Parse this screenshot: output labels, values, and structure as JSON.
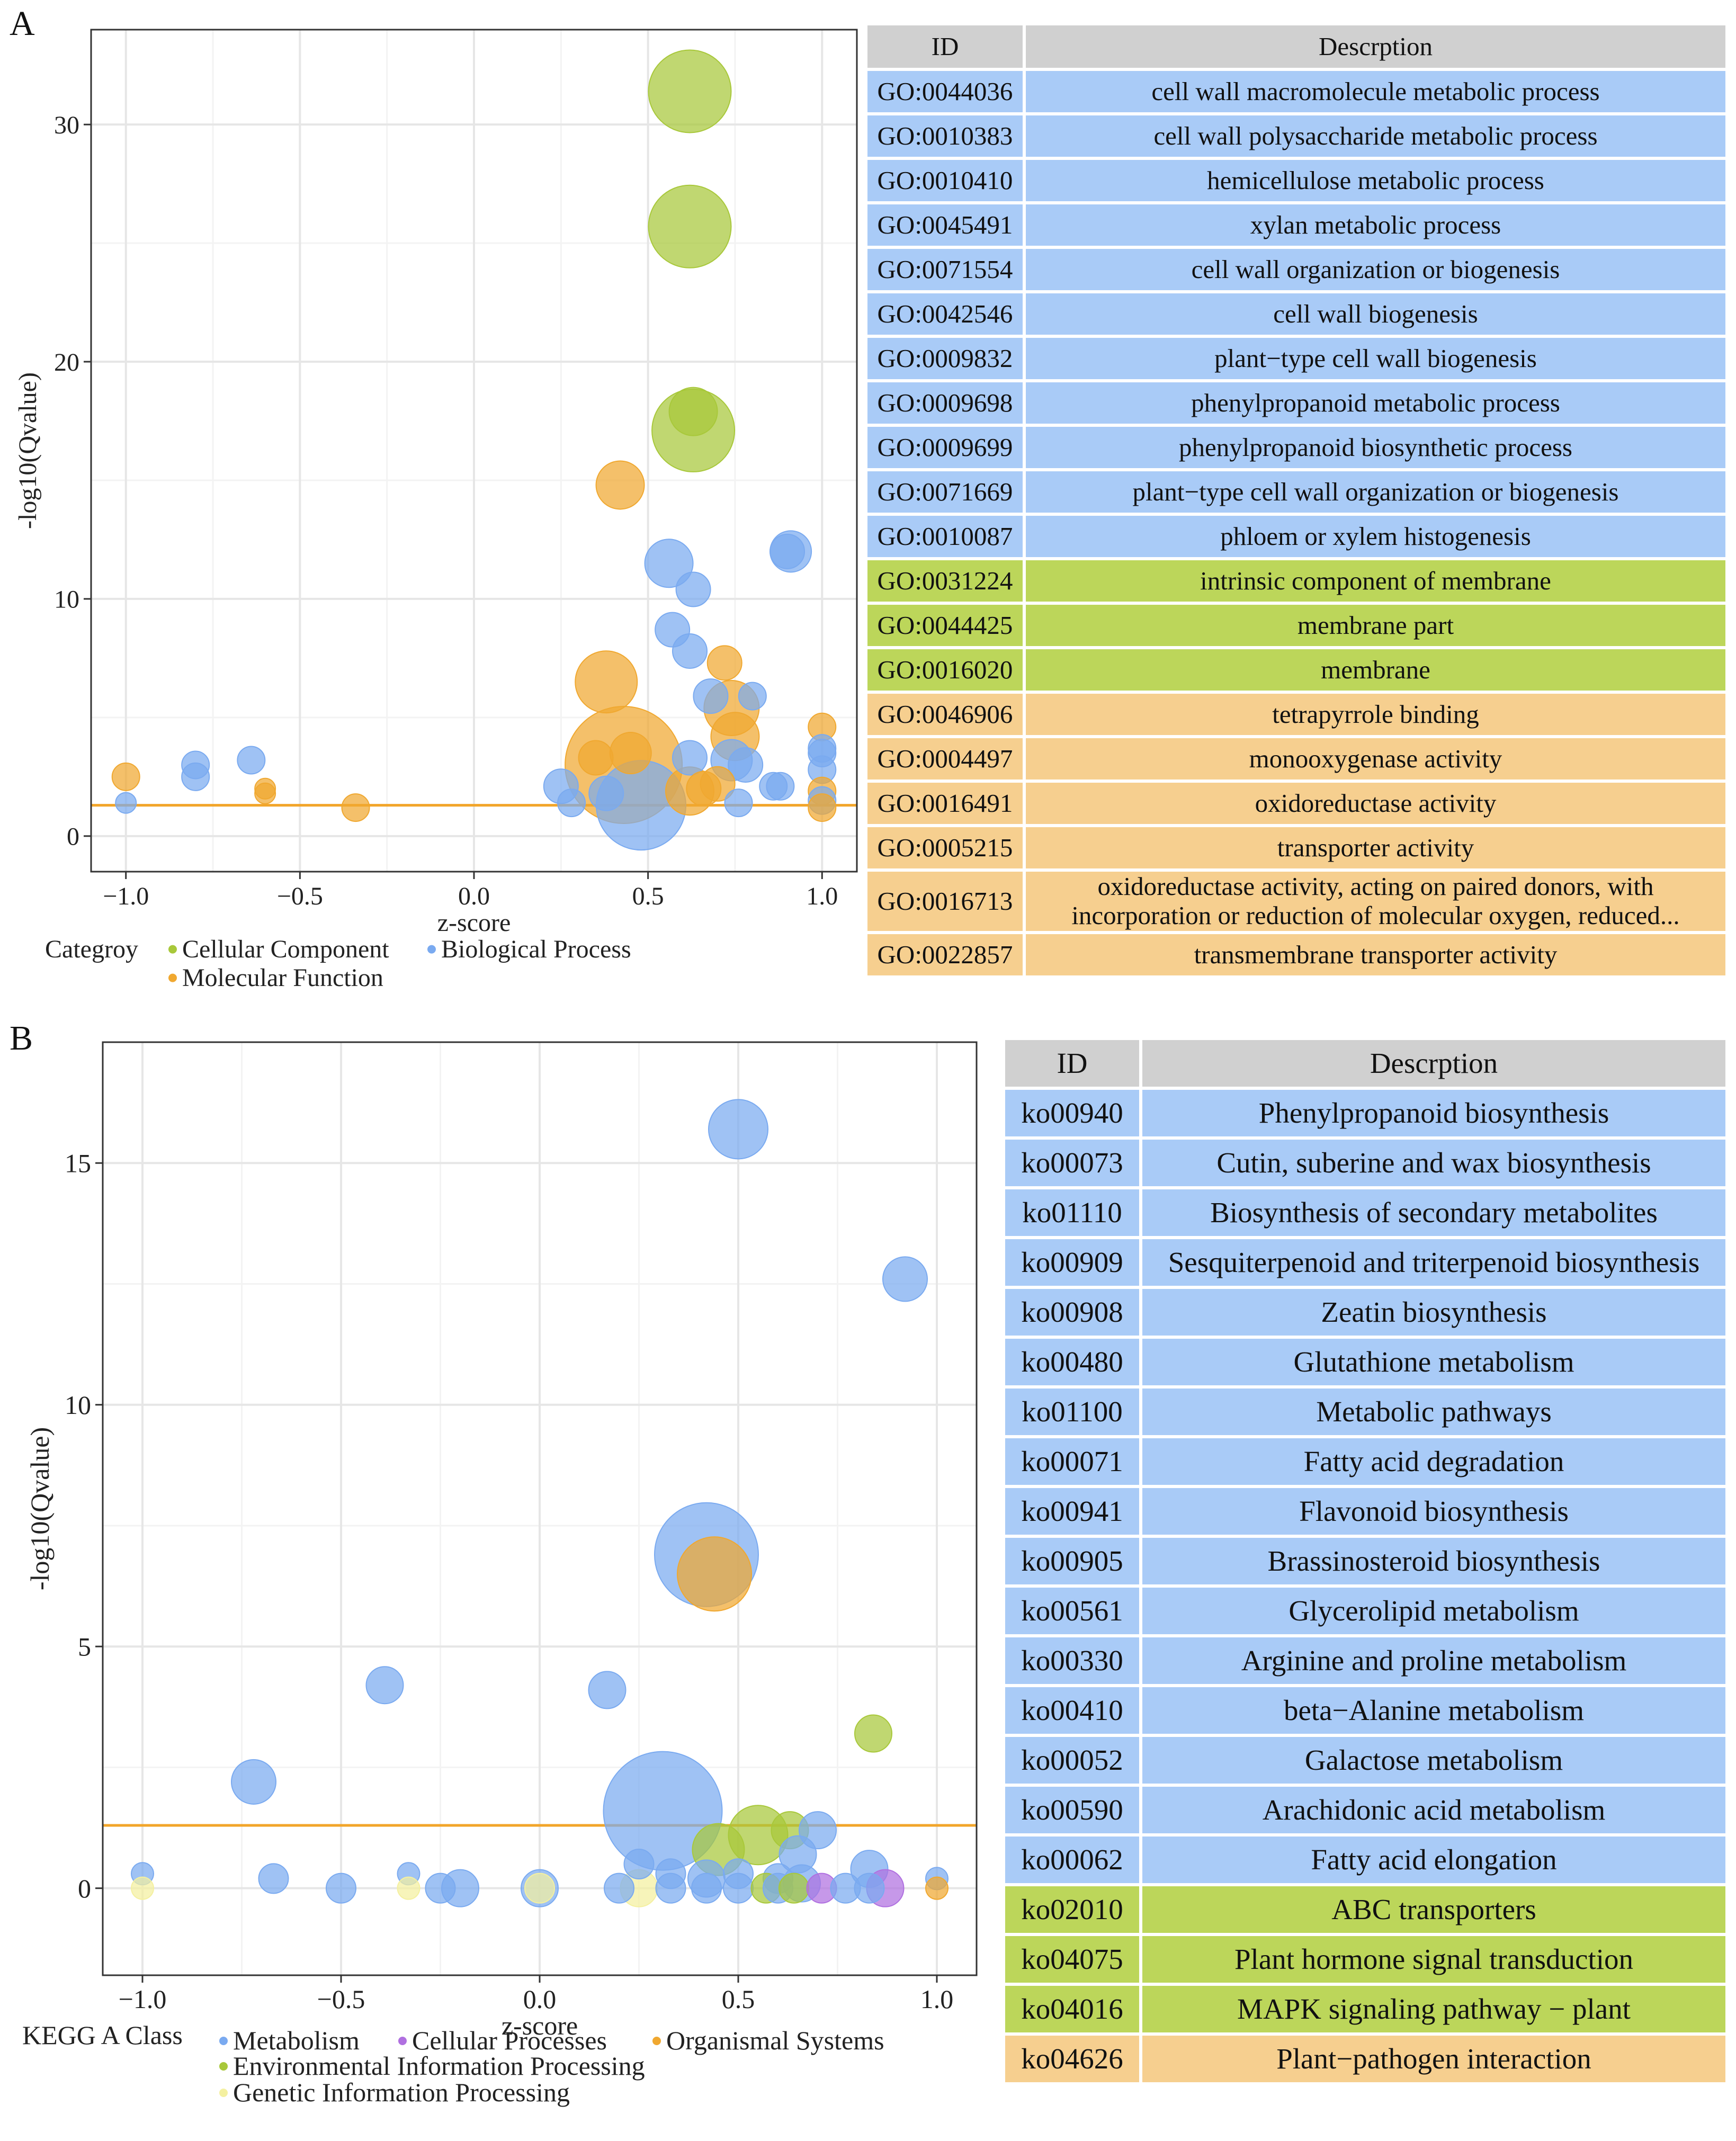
{
  "panel_a": {
    "label": "A",
    "chart_data": {
      "type": "scatter",
      "xlabel": "z-score",
      "ylabel": "-log10(Qvalue)",
      "xlim": [
        -1.1,
        1.1
      ],
      "ylim": [
        -1.5,
        34
      ],
      "xticks": [
        -1.0,
        -0.5,
        0.0,
        0.5,
        1.0
      ],
      "xtick_labels": [
        "−1.0",
        "−0.5",
        "0.0",
        "0.5",
        "1.0"
      ],
      "yticks": [
        0,
        10,
        20,
        30
      ],
      "ytick_labels": [
        "0",
        "10",
        "20",
        "30"
      ],
      "threshold_y": 1.3,
      "threshold_color": "#f2a52a",
      "legend_title": "Categroy",
      "legend": [
        {
          "name": "Cellular Component",
          "color": "#a8c83a"
        },
        {
          "name": "Biological Process",
          "color": "#7aaaf0"
        },
        {
          "name": "Molecular Function",
          "color": "#f0a830"
        }
      ],
      "points": [
        {
          "x": 0.62,
          "y": 31.4,
          "s": 12,
          "cat": 0
        },
        {
          "x": 0.62,
          "y": 25.7,
          "s": 12,
          "cat": 0
        },
        {
          "x": 0.63,
          "y": 17.1,
          "s": 12,
          "cat": 0
        },
        {
          "x": 0.63,
          "y": 17.9,
          "s": 7,
          "cat": 0
        },
        {
          "x": 0.42,
          "y": 14.8,
          "s": 7,
          "cat": 2
        },
        {
          "x": 0.56,
          "y": 11.5,
          "s": 7,
          "cat": 1
        },
        {
          "x": 0.63,
          "y": 10.4,
          "s": 5,
          "cat": 1
        },
        {
          "x": 0.91,
          "y": 12.0,
          "s": 6,
          "cat": 1
        },
        {
          "x": 0.9,
          "y": 12.0,
          "s": 5,
          "cat": 1
        },
        {
          "x": 0.57,
          "y": 8.7,
          "s": 5,
          "cat": 1
        },
        {
          "x": 0.62,
          "y": 7.8,
          "s": 5,
          "cat": 1
        },
        {
          "x": 0.38,
          "y": 6.5,
          "s": 9,
          "cat": 2
        },
        {
          "x": 0.72,
          "y": 7.3,
          "s": 5,
          "cat": 2
        },
        {
          "x": 0.68,
          "y": 5.9,
          "s": 5,
          "cat": 1
        },
        {
          "x": 0.74,
          "y": 5.4,
          "s": 8,
          "cat": 2
        },
        {
          "x": 0.8,
          "y": 5.9,
          "s": 4,
          "cat": 1
        },
        {
          "x": 0.75,
          "y": 4.2,
          "s": 7,
          "cat": 2
        },
        {
          "x": 0.43,
          "y": 3.0,
          "s": 17,
          "cat": 2
        },
        {
          "x": 0.45,
          "y": 3.5,
          "s": 6,
          "cat": 2
        },
        {
          "x": 0.35,
          "y": 3.3,
          "s": 5,
          "cat": 2
        },
        {
          "x": 0.62,
          "y": 3.3,
          "s": 5,
          "cat": 1
        },
        {
          "x": 0.74,
          "y": 3.2,
          "s": 6,
          "cat": 1
        },
        {
          "x": 0.78,
          "y": 3.0,
          "s": 5,
          "cat": 1
        },
        {
          "x": 0.25,
          "y": 2.1,
          "s": 5,
          "cat": 1
        },
        {
          "x": 0.28,
          "y": 1.4,
          "s": 4,
          "cat": 1
        },
        {
          "x": 0.38,
          "y": 1.8,
          "s": 5,
          "cat": 1
        },
        {
          "x": 0.48,
          "y": 1.3,
          "s": 13,
          "cat": 1
        },
        {
          "x": 0.62,
          "y": 1.9,
          "s": 7,
          "cat": 2
        },
        {
          "x": 0.66,
          "y": 2.0,
          "s": 5,
          "cat": 2
        },
        {
          "x": 0.7,
          "y": 2.2,
          "s": 5,
          "cat": 2
        },
        {
          "x": 0.76,
          "y": 1.4,
          "s": 4,
          "cat": 1
        },
        {
          "x": 0.86,
          "y": 2.1,
          "s": 4,
          "cat": 1
        },
        {
          "x": 0.88,
          "y": 2.1,
          "s": 4,
          "cat": 1
        },
        {
          "x": 1.0,
          "y": 4.6,
          "s": 4,
          "cat": 2
        },
        {
          "x": 1.0,
          "y": 3.7,
          "s": 4,
          "cat": 1
        },
        {
          "x": 1.0,
          "y": 3.5,
          "s": 4,
          "cat": 1
        },
        {
          "x": 1.0,
          "y": 2.8,
          "s": 4,
          "cat": 1
        },
        {
          "x": 1.0,
          "y": 1.9,
          "s": 4,
          "cat": 2
        },
        {
          "x": 1.0,
          "y": 1.5,
          "s": 4,
          "cat": 1
        },
        {
          "x": 1.0,
          "y": 1.2,
          "s": 4,
          "cat": 2
        },
        {
          "x": -1.0,
          "y": 2.5,
          "s": 4,
          "cat": 2
        },
        {
          "x": -1.0,
          "y": 1.4,
          "s": 3,
          "cat": 1
        },
        {
          "x": -0.8,
          "y": 3.0,
          "s": 4,
          "cat": 1
        },
        {
          "x": -0.8,
          "y": 2.5,
          "s": 4,
          "cat": 1
        },
        {
          "x": -0.64,
          "y": 3.2,
          "s": 4,
          "cat": 1
        },
        {
          "x": -0.6,
          "y": 2.0,
          "s": 3,
          "cat": 2
        },
        {
          "x": -0.6,
          "y": 1.8,
          "s": 3,
          "cat": 2
        },
        {
          "x": -0.34,
          "y": 1.2,
          "s": 4,
          "cat": 2
        }
      ]
    },
    "table": {
      "headers": [
        "ID",
        "Descrption"
      ],
      "rows": [
        {
          "id": "GO:0044036",
          "desc": "cell wall macromolecule metabolic process",
          "color": "#a9cbf7"
        },
        {
          "id": "GO:0010383",
          "desc": "cell wall polysaccharide metabolic process",
          "color": "#a9cbf7"
        },
        {
          "id": "GO:0010410",
          "desc": "hemicellulose metabolic process",
          "color": "#a9cbf7"
        },
        {
          "id": "GO:0045491",
          "desc": "xylan metabolic process",
          "color": "#a9cbf7"
        },
        {
          "id": "GO:0071554",
          "desc": "cell wall organization or biogenesis",
          "color": "#a9cbf7"
        },
        {
          "id": "GO:0042546",
          "desc": "cell wall biogenesis",
          "color": "#a9cbf7"
        },
        {
          "id": "GO:0009832",
          "desc": "plant−type cell wall biogenesis",
          "color": "#a9cbf7"
        },
        {
          "id": "GO:0009698",
          "desc": "phenylpropanoid metabolic process",
          "color": "#a9cbf7"
        },
        {
          "id": "GO:0009699",
          "desc": "phenylpropanoid biosynthetic process",
          "color": "#a9cbf7"
        },
        {
          "id": "GO:0071669",
          "desc": "plant−type cell wall organization or biogenesis",
          "color": "#a9cbf7"
        },
        {
          "id": "GO:0010087",
          "desc": "phloem or xylem histogenesis",
          "color": "#a9cbf7"
        },
        {
          "id": "GO:0031224",
          "desc": "intrinsic component of membrane",
          "color": "#bcd65a"
        },
        {
          "id": "GO:0044425",
          "desc": "membrane part",
          "color": "#bcd65a"
        },
        {
          "id": "GO:0016020",
          "desc": "membrane",
          "color": "#bcd65a"
        },
        {
          "id": "GO:0046906",
          "desc": "tetrapyrrole binding",
          "color": "#f6cf8f"
        },
        {
          "id": "GO:0004497",
          "desc": "monooxygenase activity",
          "color": "#f6cf8f"
        },
        {
          "id": "GO:0016491",
          "desc": "oxidoreductase activity",
          "color": "#f6cf8f"
        },
        {
          "id": "GO:0005215",
          "desc": "transporter activity",
          "color": "#f6cf8f"
        },
        {
          "id": "GO:0016713",
          "desc": "oxidoreductase activity, acting on paired donors, with incorporation or reduction of molecular oxygen, reduced...",
          "color": "#f6cf8f",
          "tall": true
        },
        {
          "id": "GO:0022857",
          "desc": "transmembrane transporter activity",
          "color": "#f6cf8f"
        }
      ]
    }
  },
  "panel_b": {
    "label": "B",
    "chart_data": {
      "type": "scatter",
      "xlabel": "z-score",
      "ylabel": "-log10(Qvalue)",
      "xlim": [
        -1.1,
        1.1
      ],
      "ylim": [
        -1.8,
        17.5
      ],
      "xticks": [
        -1.0,
        -0.5,
        0.0,
        0.5,
        1.0
      ],
      "xtick_labels": [
        "−1.0",
        "−0.5",
        "0.0",
        "0.5",
        "1.0"
      ],
      "yticks": [
        0,
        5,
        10,
        15
      ],
      "ytick_labels": [
        "0",
        "5",
        "10",
        "15"
      ],
      "threshold_y": 1.3,
      "threshold_color": "#f2a52a",
      "legend_title": "KEGG A Class",
      "legend": [
        {
          "name": "Metabolism",
          "color": "#7aaaf0"
        },
        {
          "name": "Cellular Processes",
          "color": "#b070e0"
        },
        {
          "name": "Organismal Systems",
          "color": "#f0a830"
        },
        {
          "name": "Environmental Information Processing",
          "color": "#a8c83a"
        },
        {
          "name": "Genetic Information Processing",
          "color": "#f4f0a0"
        }
      ],
      "points": [
        {
          "x": 0.5,
          "y": 15.7,
          "s": 8,
          "cat": 0
        },
        {
          "x": 0.92,
          "y": 12.6,
          "s": 6,
          "cat": 0
        },
        {
          "x": 0.42,
          "y": 6.9,
          "s": 14,
          "cat": 0
        },
        {
          "x": 0.44,
          "y": 6.5,
          "s": 10,
          "cat": 2
        },
        {
          "x": -0.39,
          "y": 4.2,
          "s": 5,
          "cat": 0
        },
        {
          "x": 0.17,
          "y": 4.1,
          "s": 5,
          "cat": 0
        },
        {
          "x": 0.84,
          "y": 3.2,
          "s": 5,
          "cat": 3
        },
        {
          "x": -0.72,
          "y": 2.2,
          "s": 6,
          "cat": 0
        },
        {
          "x": 0.31,
          "y": 1.6,
          "s": 16,
          "cat": 0
        },
        {
          "x": 0.55,
          "y": 1.1,
          "s": 8,
          "cat": 3
        },
        {
          "x": 0.63,
          "y": 1.2,
          "s": 5,
          "cat": 3
        },
        {
          "x": 0.7,
          "y": 1.2,
          "s": 5,
          "cat": 0
        },
        {
          "x": 0.45,
          "y": 0.8,
          "s": 7,
          "cat": 3
        },
        {
          "x": 0.65,
          "y": 0.7,
          "s": 5,
          "cat": 0
        },
        {
          "x": 0.83,
          "y": 0.4,
          "s": 5,
          "cat": 0
        },
        {
          "x": 0.25,
          "y": 0.5,
          "s": 4,
          "cat": 0
        },
        {
          "x": 0.33,
          "y": 0.3,
          "s": 4,
          "cat": 0
        },
        {
          "x": 0.42,
          "y": 0.2,
          "s": 5,
          "cat": 0
        },
        {
          "x": 0.5,
          "y": 0.3,
          "s": 4,
          "cat": 0
        },
        {
          "x": 0.6,
          "y": 0.2,
          "s": 4,
          "cat": 0
        },
        {
          "x": 0.66,
          "y": 0.1,
          "s": 5,
          "cat": 0
        },
        {
          "x": -1.0,
          "y": 0.3,
          "s": 3,
          "cat": 0
        },
        {
          "x": -1.0,
          "y": 0.0,
          "s": 3,
          "cat": 4
        },
        {
          "x": -0.67,
          "y": 0.2,
          "s": 4,
          "cat": 0
        },
        {
          "x": -0.5,
          "y": 0.0,
          "s": 4,
          "cat": 0
        },
        {
          "x": -0.33,
          "y": 0.3,
          "s": 3,
          "cat": 0
        },
        {
          "x": -0.33,
          "y": 0.0,
          "s": 3,
          "cat": 4
        },
        {
          "x": -0.25,
          "y": 0.0,
          "s": 4,
          "cat": 0
        },
        {
          "x": -0.2,
          "y": 0.0,
          "s": 5,
          "cat": 0
        },
        {
          "x": 0.0,
          "y": 0.0,
          "s": 5,
          "cat": 0
        },
        {
          "x": 0.0,
          "y": 0.0,
          "s": 4,
          "cat": 4
        },
        {
          "x": 0.2,
          "y": 0.0,
          "s": 4,
          "cat": 0
        },
        {
          "x": 0.25,
          "y": 0.0,
          "s": 5,
          "cat": 4
        },
        {
          "x": 0.33,
          "y": 0.0,
          "s": 4,
          "cat": 0
        },
        {
          "x": 0.42,
          "y": 0.0,
          "s": 4,
          "cat": 0
        },
        {
          "x": 0.5,
          "y": 0.0,
          "s": 4,
          "cat": 0
        },
        {
          "x": 0.57,
          "y": 0.0,
          "s": 4,
          "cat": 3
        },
        {
          "x": 0.6,
          "y": 0.0,
          "s": 4,
          "cat": 0
        },
        {
          "x": 0.64,
          "y": 0.0,
          "s": 4,
          "cat": 3
        },
        {
          "x": 0.71,
          "y": 0.0,
          "s": 4,
          "cat": 1
        },
        {
          "x": 0.77,
          "y": 0.0,
          "s": 4,
          "cat": 0
        },
        {
          "x": 0.83,
          "y": 0.0,
          "s": 4,
          "cat": 0
        },
        {
          "x": 0.87,
          "y": 0.0,
          "s": 5,
          "cat": 1
        },
        {
          "x": 1.0,
          "y": 0.2,
          "s": 3,
          "cat": 0
        },
        {
          "x": 1.0,
          "y": 0.0,
          "s": 3,
          "cat": 2
        }
      ]
    },
    "table": {
      "headers": [
        "ID",
        "Descrption"
      ],
      "rows": [
        {
          "id": "ko00940",
          "desc": "Phenylpropanoid biosynthesis",
          "color": "#a9cbf7"
        },
        {
          "id": "ko00073",
          "desc": "Cutin, suberine and wax biosynthesis",
          "color": "#a9cbf7"
        },
        {
          "id": "ko01110",
          "desc": "Biosynthesis of secondary metabolites",
          "color": "#a9cbf7"
        },
        {
          "id": "ko00909",
          "desc": "Sesquiterpenoid and triterpenoid biosynthesis",
          "color": "#a9cbf7"
        },
        {
          "id": "ko00908",
          "desc": "Zeatin biosynthesis",
          "color": "#a9cbf7"
        },
        {
          "id": "ko00480",
          "desc": "Glutathione metabolism",
          "color": "#a9cbf7"
        },
        {
          "id": "ko01100",
          "desc": "Metabolic pathways",
          "color": "#a9cbf7"
        },
        {
          "id": "ko00071",
          "desc": "Fatty acid degradation",
          "color": "#a9cbf7"
        },
        {
          "id": "ko00941",
          "desc": "Flavonoid biosynthesis",
          "color": "#a9cbf7"
        },
        {
          "id": "ko00905",
          "desc": "Brassinosteroid biosynthesis",
          "color": "#a9cbf7"
        },
        {
          "id": "ko00561",
          "desc": "Glycerolipid metabolism",
          "color": "#a9cbf7"
        },
        {
          "id": "ko00330",
          "desc": "Arginine and proline metabolism",
          "color": "#a9cbf7"
        },
        {
          "id": "ko00410",
          "desc": "beta−Alanine metabolism",
          "color": "#a9cbf7"
        },
        {
          "id": "ko00052",
          "desc": "Galactose metabolism",
          "color": "#a9cbf7"
        },
        {
          "id": "ko00590",
          "desc": "Arachidonic acid metabolism",
          "color": "#a9cbf7"
        },
        {
          "id": "ko00062",
          "desc": "Fatty acid elongation",
          "color": "#a9cbf7"
        },
        {
          "id": "ko02010",
          "desc": "ABC transporters",
          "color": "#bcd65a"
        },
        {
          "id": "ko04075",
          "desc": "Plant hormone signal transduction",
          "color": "#bcd65a"
        },
        {
          "id": "ko04016",
          "desc": "MAPK signaling pathway − plant",
          "color": "#bcd65a"
        },
        {
          "id": "ko04626",
          "desc": "Plant−pathogen interaction",
          "color": "#f6cf8f"
        }
      ]
    }
  }
}
